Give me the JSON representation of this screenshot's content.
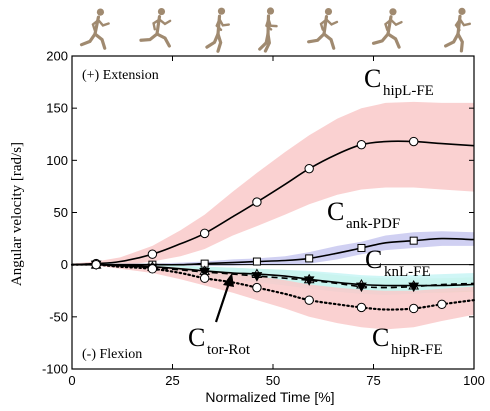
{
  "chart_data": {
    "type": "line",
    "xlabel": "Normalized Time [%]",
    "ylabel": "Angular velocity [rad/s]",
    "xlim": [
      0,
      100
    ],
    "ylim": [
      -100,
      200
    ],
    "xticks": [
      "0",
      "25",
      "50",
      "75",
      "100"
    ],
    "yticks": [
      "200",
      "150",
      "100",
      "50",
      "0",
      "-50",
      "-100"
    ],
    "grid": false,
    "annotations": {
      "top_left": "(+) Extension",
      "bottom_left": "(-) Flexion"
    },
    "series": [
      {
        "label_main": "C",
        "label_sub": "hipL-FE",
        "line_color": "#000000",
        "line_style": "solid",
        "marker": "circle",
        "band_color": "#f9c9c9",
        "x": [
          0,
          6,
          12,
          20,
          27,
          33,
          40,
          46,
          53,
          59,
          66,
          72,
          78,
          85,
          92,
          100
        ],
        "y": [
          0,
          1,
          3,
          10,
          20,
          30,
          46,
          60,
          77,
          92,
          106,
          115,
          118,
          118,
          116,
          114
        ],
        "band_low": [
          -1,
          -1,
          -1,
          3,
          8,
          15,
          28,
          37,
          48,
          58,
          67,
          72,
          74,
          74,
          72,
          70
        ],
        "band_high": [
          1,
          3,
          7,
          18,
          33,
          48,
          70,
          88,
          108,
          124,
          140,
          150,
          155,
          156,
          155,
          155
        ],
        "markers_x": [
          6,
          20,
          33,
          46,
          59,
          72,
          85
        ]
      },
      {
        "label_main": "C",
        "label_sub": "ank-PDF",
        "line_color": "#000000",
        "line_style": "solid",
        "marker": "square",
        "band_color": "#c8c8f0",
        "x": [
          0,
          6,
          12,
          20,
          27,
          33,
          40,
          46,
          53,
          59,
          66,
          72,
          78,
          85,
          92,
          100
        ],
        "y": [
          0,
          0,
          0,
          0,
          0,
          1,
          2,
          3,
          4,
          6,
          11,
          16,
          21,
          23,
          25,
          24
        ],
        "band_low": [
          -1,
          -1,
          -1,
          -1,
          -1,
          -1,
          -1,
          0,
          0,
          1,
          5,
          10,
          14,
          16,
          18,
          18
        ],
        "band_high": [
          1,
          1,
          1,
          1,
          2,
          3,
          5,
          6,
          8,
          12,
          18,
          22,
          28,
          31,
          32,
          31
        ],
        "markers_x": [
          6,
          20,
          33,
          46,
          59,
          72,
          85
        ]
      },
      {
        "label_main": "C",
        "label_sub": "knL-FE",
        "line_color": "#000000",
        "line_style": "solid",
        "marker": "triangle",
        "band_color": "#c8f0c8",
        "x": [
          0,
          6,
          12,
          20,
          27,
          33,
          40,
          46,
          53,
          59,
          66,
          72,
          78,
          85,
          92,
          100
        ],
        "y": [
          0,
          0,
          -1,
          -2,
          -4,
          -6,
          -8,
          -9,
          -11,
          -14,
          -17,
          -19,
          -20,
          -20,
          -20,
          -19
        ],
        "band_low": [
          -1,
          -1,
          -2,
          -4,
          -7,
          -10,
          -13,
          -15,
          -18,
          -21,
          -24,
          -26,
          -27,
          -27,
          -27,
          -26
        ],
        "band_high": [
          1,
          1,
          0,
          0,
          -1,
          -2,
          -3,
          -4,
          -5,
          -7,
          -10,
          -12,
          -13,
          -13,
          -13,
          -12
        ],
        "markers_x": [
          6,
          20,
          33,
          46,
          59,
          72,
          85
        ]
      },
      {
        "label_main": "C",
        "label_sub": "tor-Rot",
        "line_color": "#000000",
        "line_style": "dashed",
        "marker": "triangle-down",
        "band_color": "#c8f4f4",
        "x": [
          0,
          6,
          12,
          20,
          27,
          33,
          40,
          46,
          53,
          59,
          66,
          72,
          78,
          85,
          92,
          100
        ],
        "y": [
          0,
          0,
          -1,
          -3,
          -5,
          -7,
          -9,
          -11,
          -13,
          -15,
          -18,
          -21,
          -22,
          -21,
          -19,
          -18
        ],
        "band_low": [
          -1,
          -1,
          -2,
          -5,
          -8,
          -11,
          -14,
          -17,
          -20,
          -23,
          -26,
          -28,
          -29,
          -28,
          -26,
          -25
        ],
        "band_high": [
          1,
          1,
          1,
          0,
          -1,
          -2,
          -3,
          -4,
          -5,
          -6,
          -8,
          -10,
          -11,
          -10,
          -9,
          -8
        ],
        "markers_x": [
          6,
          20,
          33,
          46,
          59,
          72,
          85
        ]
      },
      {
        "label_main": "C",
        "label_sub": "hipR-FE",
        "line_color": "#000000",
        "line_style": "dotted",
        "marker": "circle",
        "band_color": "#f9c9c9",
        "x": [
          0,
          6,
          12,
          20,
          27,
          33,
          40,
          46,
          53,
          59,
          66,
          72,
          78,
          85,
          92,
          100
        ],
        "y": [
          0,
          0,
          -2,
          -4,
          -8,
          -13,
          -17,
          -22,
          -28,
          -34,
          -38,
          -41,
          -43,
          -42,
          -38,
          -34
        ],
        "band_low": [
          -1,
          -1,
          -4,
          -8,
          -14,
          -20,
          -27,
          -34,
          -42,
          -50,
          -56,
          -60,
          -62,
          -60,
          -54,
          -48
        ],
        "band_high": [
          1,
          1,
          0,
          -1,
          -3,
          -5,
          -8,
          -11,
          -15,
          -19,
          -22,
          -24,
          -25,
          -25,
          -23,
          -21
        ],
        "markers_x": [
          6,
          20,
          33,
          46,
          59,
          72,
          85,
          92
        ]
      }
    ]
  }
}
